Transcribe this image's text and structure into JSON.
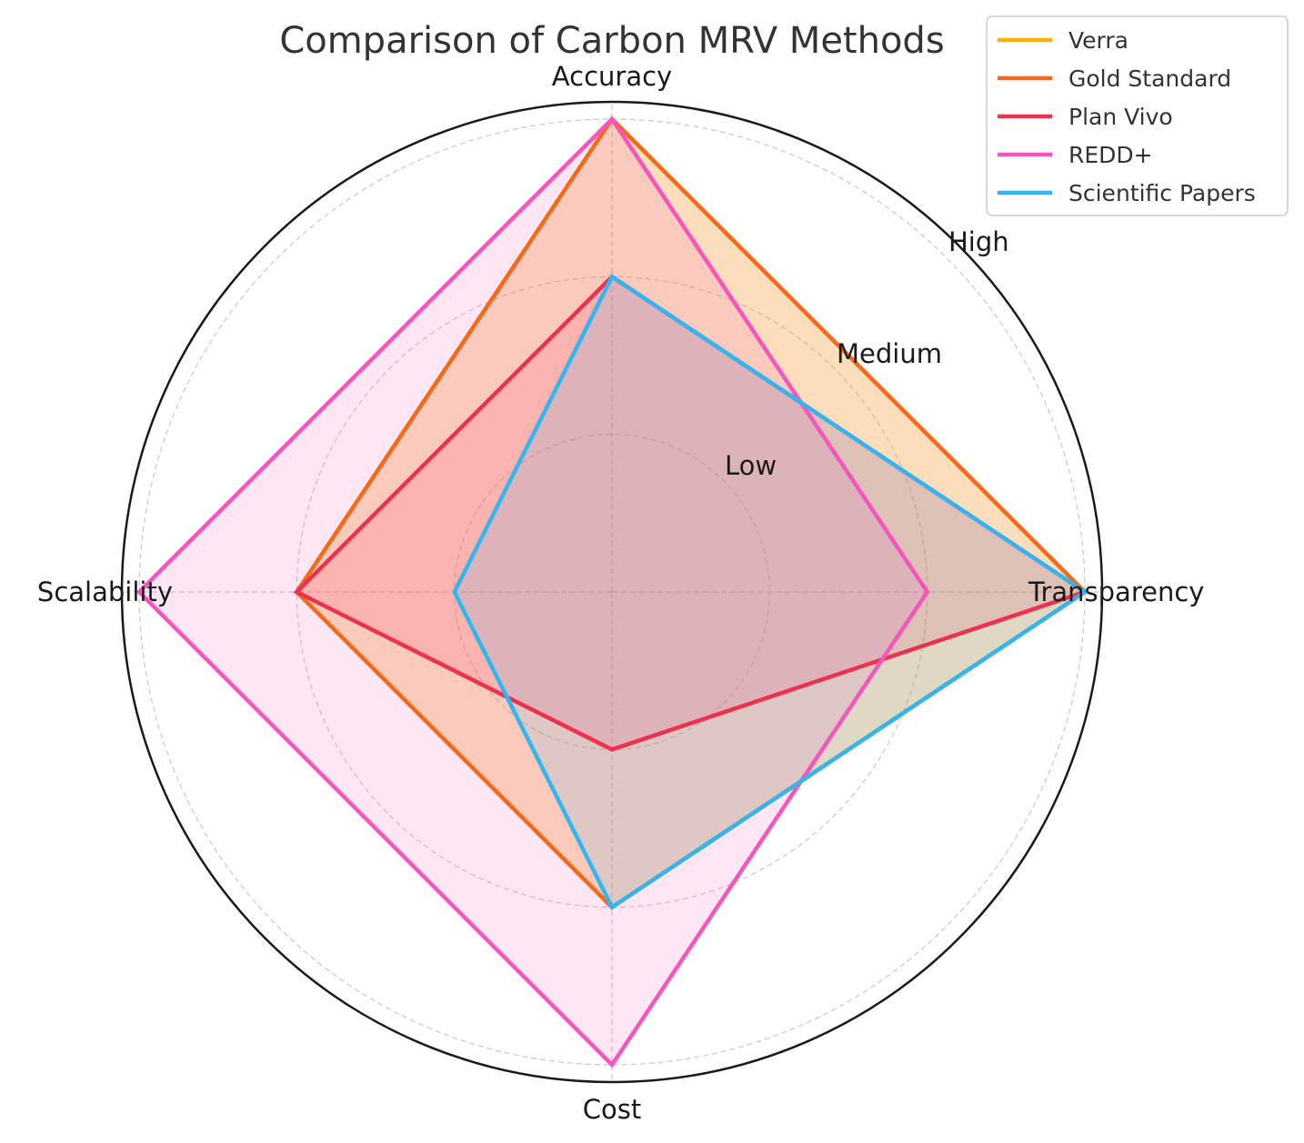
{
  "chart_data": {
    "type": "radar",
    "title": "Comparison of Carbon MRV Methods",
    "axes": [
      "Accuracy",
      "Transparency",
      "Cost",
      "Scalability"
    ],
    "ring_labels": [
      "Low",
      "Medium",
      "High"
    ],
    "rlim": [
      0,
      3
    ],
    "grid": true,
    "legend_position": "top-right",
    "series": [
      {
        "name": "Verra",
        "color": "#FFB000",
        "values": [
          3,
          3,
          2,
          2
        ]
      },
      {
        "name": "Gold Standard",
        "color": "#F26B1D",
        "values": [
          3,
          3,
          2,
          2
        ]
      },
      {
        "name": "Plan Vivo",
        "color": "#F0304F",
        "values": [
          2,
          3,
          1,
          2
        ]
      },
      {
        "name": "REDD+",
        "color": "#F556BE",
        "values": [
          3,
          2,
          3,
          3
        ]
      },
      {
        "name": "Scientific Papers",
        "color": "#33B5EF",
        "values": [
          2,
          3,
          2,
          1
        ]
      }
    ]
  }
}
